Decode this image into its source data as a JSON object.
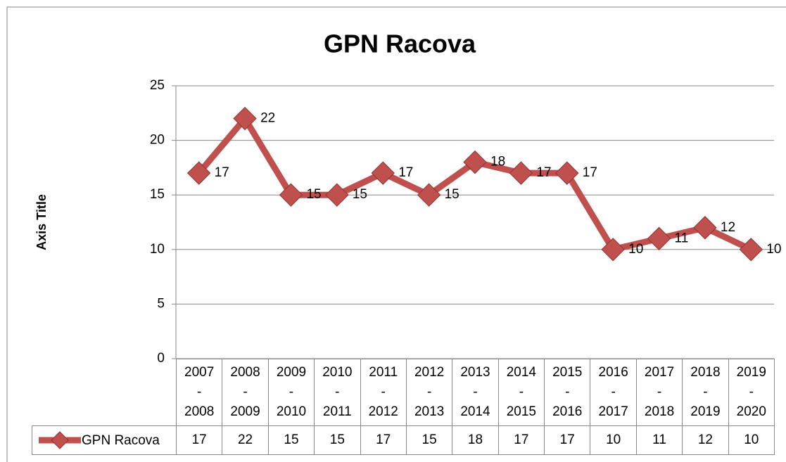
{
  "chart_data": {
    "type": "line",
    "title": "GPN Racova",
    "y_label": "Axis Title",
    "categories": [
      "2007 - 2008",
      "2008 - 2009",
      "2009 - 2010",
      "2010 - 2011",
      "2011 - 2012",
      "2012 - 2013",
      "2013 - 2014",
      "2014 - 2015",
      "2015 - 2016",
      "2016 - 2017",
      "2017 - 2018",
      "2018 - 2019",
      "2019 - 2020"
    ],
    "series": [
      {
        "name": "GPN Racova",
        "color": "#c0504d",
        "values": [
          17,
          22,
          15,
          15,
          17,
          15,
          18,
          17,
          17,
          10,
          11,
          12,
          10
        ]
      }
    ],
    "ylim": [
      0,
      25
    ],
    "yticks": [
      0,
      5,
      10,
      15,
      20,
      25
    ],
    "grid": true,
    "data_labels": true,
    "data_table": true
  }
}
